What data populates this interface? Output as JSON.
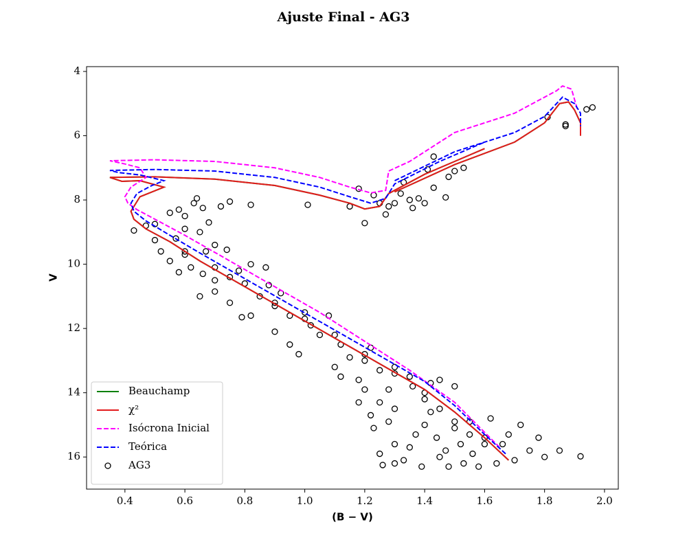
{
  "chart_data": {
    "type": "scatter",
    "title": "Ajuste Final - AG3",
    "x_label": "(B − V)",
    "y_label": "V",
    "xlim": [
      0.272,
      2.046
    ],
    "ylim": [
      17.0,
      3.85
    ],
    "xticks": [
      0.4,
      0.6,
      0.8,
      {
        "value": 1,
        "label": "1.0"
      },
      1.2,
      1.4,
      1.6,
      1.8,
      {
        "value": 2,
        "label": "2.0"
      }
    ],
    "yticks": [
      4,
      6,
      8,
      10,
      12,
      14,
      16
    ],
    "legend": "lower left",
    "series": [
      {
        "name": "Beauchamp",
        "kind": "line",
        "linestyle": "solid",
        "color": "#008000",
        "x": [
          1.68,
          1.6,
          1.5,
          1.4,
          1.25,
          1.1,
          0.95,
          0.8,
          0.65,
          0.55,
          0.47,
          0.43,
          0.42,
          0.45,
          0.53,
          0.45,
          0.39,
          0.35,
          0.5,
          0.7,
          0.9,
          1.05,
          1.15,
          1.2,
          1.25,
          1.28,
          1.4,
          1.5,
          1.6,
          null,
          1.3,
          1.5,
          1.7,
          1.8,
          1.85,
          1.88,
          1.9,
          1.92,
          1.92
        ],
        "values": [
          16.1,
          15.4,
          14.6,
          13.9,
          13.1,
          12.3,
          11.5,
          10.7,
          9.9,
          9.3,
          8.9,
          8.6,
          8.35,
          7.9,
          7.6,
          7.4,
          7.42,
          7.3,
          7.28,
          7.35,
          7.55,
          7.85,
          8.1,
          8.28,
          8.2,
          7.8,
          7.2,
          6.8,
          6.4,
          null,
          7.75,
          6.9,
          6.2,
          5.6,
          5.0,
          4.95,
          5.2,
          5.6,
          6.0
        ]
      },
      {
        "name": "χ²",
        "kind": "line",
        "linestyle": "solid",
        "color": "#e31a1c",
        "x": [
          1.68,
          1.6,
          1.5,
          1.4,
          1.25,
          1.1,
          0.95,
          0.8,
          0.65,
          0.55,
          0.47,
          0.43,
          0.42,
          0.45,
          0.53,
          0.45,
          0.39,
          0.35,
          0.5,
          0.7,
          0.9,
          1.05,
          1.15,
          1.2,
          1.25,
          1.28,
          1.4,
          1.5,
          1.6,
          null,
          1.3,
          1.5,
          1.7,
          1.8,
          1.85,
          1.88,
          1.9,
          1.92,
          1.92
        ],
        "values": [
          16.1,
          15.4,
          14.6,
          13.9,
          13.1,
          12.3,
          11.5,
          10.7,
          9.9,
          9.3,
          8.9,
          8.6,
          8.35,
          7.9,
          7.6,
          7.4,
          7.42,
          7.3,
          7.28,
          7.35,
          7.55,
          7.85,
          8.1,
          8.28,
          8.2,
          7.8,
          7.2,
          6.8,
          6.4,
          null,
          7.75,
          6.9,
          6.2,
          5.6,
          5.0,
          4.95,
          5.2,
          5.6,
          6.0
        ]
      },
      {
        "name": "Isócrona Inicial",
        "kind": "line",
        "linestyle": "dashed",
        "color": "#ff00ff",
        "x": [
          1.65,
          1.5,
          1.35,
          1.2,
          1.05,
          0.9,
          0.75,
          0.6,
          0.5,
          0.44,
          0.41,
          0.4,
          0.42,
          0.47,
          0.45,
          0.4,
          0.35,
          0.5,
          0.7,
          0.9,
          1.05,
          1.15,
          1.22,
          1.27,
          1.28,
          1.35,
          1.5,
          1.7,
          1.84,
          1.86,
          1.89,
          1.91
        ],
        "values": [
          15.7,
          14.3,
          13.3,
          12.4,
          11.5,
          10.7,
          9.9,
          9.1,
          8.6,
          8.3,
          8.1,
          7.9,
          7.6,
          7.3,
          7.0,
          6.88,
          6.78,
          6.75,
          6.8,
          7.0,
          7.3,
          7.6,
          7.78,
          7.7,
          7.1,
          6.8,
          5.9,
          5.3,
          4.6,
          4.45,
          4.55,
          5.2
        ]
      },
      {
        "name": "Teórica",
        "kind": "line",
        "linestyle": "dashed",
        "color": "#0000ff",
        "x": [
          1.67,
          1.6,
          1.5,
          1.4,
          1.25,
          1.1,
          0.95,
          0.8,
          0.65,
          0.55,
          0.47,
          0.43,
          0.42,
          0.44,
          0.49,
          0.53,
          0.45,
          0.38,
          0.35,
          0.5,
          0.7,
          0.9,
          1.05,
          1.15,
          1.22,
          1.27,
          1.3,
          1.45,
          1.6,
          null,
          1.3,
          1.5,
          1.7,
          1.8,
          1.86,
          1.9,
          1.92,
          1.92
        ],
        "values": [
          15.9,
          15.3,
          14.4,
          13.65,
          12.85,
          12.05,
          11.25,
          10.45,
          9.65,
          9.1,
          8.65,
          8.35,
          8.1,
          7.8,
          7.55,
          7.4,
          7.22,
          7.15,
          7.08,
          7.05,
          7.1,
          7.3,
          7.6,
          7.9,
          8.1,
          7.95,
          7.5,
          6.8,
          6.2,
          null,
          7.4,
          6.5,
          5.9,
          5.4,
          4.8,
          5.0,
          5.3,
          5.7
        ]
      },
      {
        "name": "AG3",
        "kind": "scatter",
        "color": "#000000",
        "x": [
          1.96,
          1.94,
          1.87,
          1.87,
          1.81,
          1.48,
          1.5,
          1.53,
          1.43,
          1.41,
          1.43,
          1.47,
          1.4,
          1.35,
          1.3,
          1.28,
          1.27,
          1.25,
          1.23,
          1.2,
          1.15,
          1.18,
          1.01,
          0.82,
          1.32,
          1.33,
          1.36,
          1.38,
          0.43,
          0.47,
          0.5,
          0.55,
          0.58,
          0.6,
          0.63,
          0.66,
          0.68,
          0.72,
          0.75,
          0.64,
          0.6,
          0.65,
          0.57,
          0.5,
          0.52,
          0.55,
          0.6,
          0.67,
          0.7,
          0.74,
          0.58,
          0.62,
          0.66,
          0.7,
          0.75,
          0.78,
          0.82,
          0.87,
          0.65,
          0.7,
          0.75,
          0.79,
          0.85,
          0.88,
          0.9,
          0.92,
          0.95,
          1.0,
          0.82,
          0.9,
          0.95,
          0.98,
          1.05,
          1.02,
          1.08,
          1.12,
          1.15,
          1.1,
          1.12,
          1.18,
          1.2,
          1.22,
          1.25,
          1.28,
          1.25,
          1.2,
          1.3,
          1.35,
          1.36,
          1.4,
          1.42,
          1.45,
          1.5,
          1.3,
          1.28,
          1.3,
          1.3,
          1.33,
          1.35,
          1.37,
          1.39,
          1.4,
          1.42,
          1.44,
          1.45,
          1.47,
          1.48,
          1.5,
          1.52,
          1.53,
          1.55,
          1.56,
          1.58,
          1.6,
          1.62,
          1.64,
          1.66,
          1.68,
          1.7,
          1.72,
          1.75,
          1.78,
          1.8,
          1.85,
          1.92,
          1.25,
          1.26,
          1.23,
          1.22,
          1.18,
          0.6,
          0.8,
          1.0,
          1.2,
          1.4,
          1.5,
          1.6,
          0.7,
          0.9,
          1.1,
          1.3,
          1.45,
          1.55
        ],
        "values": [
          5.12,
          5.18,
          5.65,
          5.7,
          5.42,
          7.28,
          7.1,
          7.0,
          6.65,
          7.05,
          7.62,
          7.92,
          8.1,
          8.0,
          8.1,
          8.2,
          8.45,
          8.1,
          7.85,
          8.72,
          8.2,
          7.65,
          8.15,
          8.15,
          7.8,
          7.45,
          8.25,
          7.95,
          8.95,
          8.8,
          8.75,
          8.4,
          8.3,
          8.5,
          8.1,
          8.25,
          8.7,
          8.2,
          8.05,
          7.95,
          8.9,
          9.0,
          9.2,
          9.25,
          9.6,
          9.9,
          9.7,
          9.6,
          9.4,
          9.55,
          10.25,
          10.1,
          10.3,
          10.5,
          10.4,
          10.2,
          10.0,
          10.1,
          11.0,
          10.85,
          11.2,
          11.65,
          11.0,
          10.65,
          11.3,
          10.9,
          11.6,
          11.5,
          11.6,
          12.1,
          12.5,
          12.8,
          12.2,
          11.9,
          11.6,
          12.5,
          12.9,
          13.2,
          13.5,
          13.6,
          13.0,
          12.6,
          13.3,
          13.9,
          14.3,
          13.9,
          13.2,
          13.5,
          13.8,
          14.0,
          13.7,
          13.6,
          13.8,
          14.5,
          14.9,
          15.6,
          16.2,
          16.1,
          15.7,
          15.3,
          16.3,
          15.0,
          14.6,
          15.4,
          16.0,
          15.8,
          16.3,
          15.1,
          15.6,
          16.2,
          14.9,
          15.9,
          16.3,
          15.4,
          14.8,
          16.2,
          15.6,
          15.3,
          16.1,
          15.0,
          15.8,
          15.4,
          16.0,
          15.8,
          15.98,
          15.9,
          16.25,
          15.1,
          14.7,
          14.3,
          9.6,
          10.6,
          11.7,
          12.8,
          14.2,
          14.9,
          15.6,
          10.1,
          11.2,
          12.2,
          13.4,
          14.5,
          15.3
        ]
      }
    ]
  }
}
